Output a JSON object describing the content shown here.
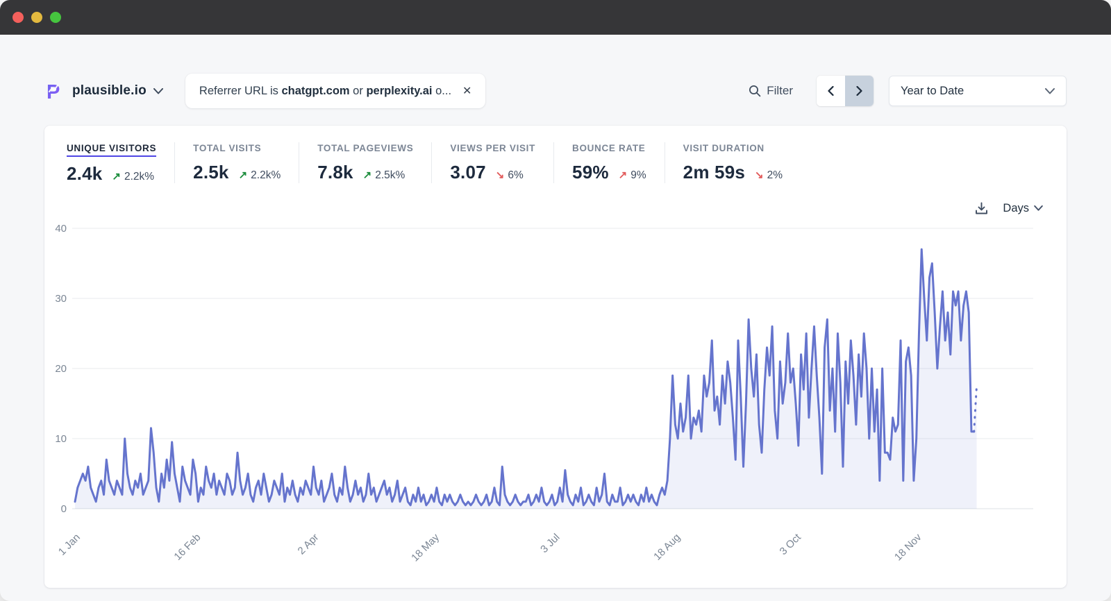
{
  "window": {
    "titlebar_color": "#363638"
  },
  "topbar": {
    "site": {
      "name": "plausible.io"
    },
    "filter_chip": {
      "prefix": "Referrer URL is ",
      "bold1": "chatgpt.com",
      "middle": " or ",
      "bold2": "perplexity.ai",
      "suffix": " o...",
      "close_glyph": "✕"
    },
    "filter_button_label": "Filter",
    "pager": {
      "prev_glyph": "‹",
      "next_glyph": "›"
    },
    "date_range_label": "Year to Date"
  },
  "stats": {
    "items": [
      {
        "label": "UNIQUE VISITORS",
        "value": "2.4k",
        "arrow": "↗",
        "change": "2.2k%",
        "arrow_color": "#1e8e3e",
        "selected": true
      },
      {
        "label": "TOTAL VISITS",
        "value": "2.5k",
        "arrow": "↗",
        "change": "2.2k%",
        "arrow_color": "#1e8e3e",
        "selected": false
      },
      {
        "label": "TOTAL PAGEVIEWS",
        "value": "7.8k",
        "arrow": "↗",
        "change": "2.5k%",
        "arrow_color": "#1e8e3e",
        "selected": false
      },
      {
        "label": "VIEWS PER VISIT",
        "value": "3.07",
        "arrow": "↘",
        "change": "6%",
        "arrow_color": "#e25c5c",
        "selected": false
      },
      {
        "label": "BOUNCE RATE",
        "value": "59%",
        "arrow": "↗",
        "change": "9%",
        "arrow_color": "#e25c5c",
        "selected": false
      },
      {
        "label": "VISIT DURATION",
        "value": "2m 59s",
        "arrow": "↘",
        "change": "2%",
        "arrow_color": "#e25c5c",
        "selected": false
      }
    ]
  },
  "chart_controls": {
    "interval_label": "Days"
  },
  "chart_data": {
    "type": "line",
    "title": "Unique visitors by day (Year to Date)",
    "ylim": [
      0,
      40
    ],
    "yticks": [
      0,
      10,
      20,
      30,
      40
    ],
    "x_domain_days": 365,
    "xticks": {
      "days": [
        0,
        46,
        91,
        137,
        183,
        229,
        275,
        321
      ],
      "labels": [
        "1 Jan",
        "16 Feb",
        "2 Apr",
        "18 May",
        "3 Jul",
        "18 Aug",
        "3 Oct",
        "18 Nov"
      ]
    },
    "line_color": "#6574cd",
    "fill_color": "rgba(101,116,205,0.10)",
    "grid_color": "#e9ebee",
    "axis_text_color": "#7b8694",
    "last_segment_dashed": true,
    "legend": "none",
    "values": [
      1,
      3,
      4,
      5,
      4,
      6,
      3,
      2,
      1,
      3,
      4,
      2,
      7,
      4,
      3,
      2,
      4,
      3,
      2,
      10,
      5,
      3,
      2,
      4,
      3,
      5,
      2,
      3,
      4,
      11.5,
      8,
      3,
      1,
      5,
      3,
      7,
      4,
      9.5,
      5,
      3,
      1,
      6,
      4,
      3,
      2,
      7,
      5,
      1,
      3,
      2,
      6,
      4,
      3,
      5,
      2,
      4,
      3,
      2,
      5,
      4,
      2,
      3,
      8,
      4,
      2,
      3,
      5,
      2,
      1,
      3,
      4,
      2,
      5,
      3,
      1,
      2,
      4,
      3,
      2,
      5,
      1,
      3,
      2,
      4,
      2,
      1,
      3,
      2,
      4,
      3,
      2,
      6,
      3,
      2,
      4,
      1,
      2,
      3,
      5,
      2,
      1,
      3,
      2,
      6,
      3,
      1,
      2,
      4,
      2,
      3,
      1,
      2,
      5,
      2,
      3,
      1,
      2,
      3,
      4,
      2,
      3,
      1,
      2,
      4,
      1,
      2,
      3,
      1,
      0.5,
      2,
      1,
      3,
      1,
      2,
      0.5,
      1,
      2,
      1,
      3,
      1,
      0.5,
      2,
      1,
      2,
      1,
      0.5,
      1,
      2,
      1,
      0.5,
      1,
      0.5,
      1,
      2,
      1,
      0.5,
      1,
      2,
      0.5,
      1,
      3,
      1,
      0.5,
      6,
      2,
      1,
      0.5,
      1,
      2,
      1,
      0.5,
      1,
      1,
      2,
      0.5,
      1,
      2,
      1,
      3,
      1,
      0.5,
      1,
      2,
      0.5,
      1,
      3,
      1,
      5.5,
      2,
      1,
      0.5,
      2,
      1,
      3,
      0.5,
      1,
      2,
      1,
      0.5,
      3,
      1,
      2,
      5,
      1,
      0.5,
      2,
      1,
      1,
      3,
      0.5,
      1,
      2,
      1,
      2,
      1,
      0.5,
      2,
      1,
      3,
      1,
      2,
      1,
      0.5,
      2,
      3,
      2,
      4,
      10,
      19,
      12,
      10,
      15,
      11,
      13,
      19,
      10,
      13,
      12,
      14,
      11,
      19,
      16,
      18,
      24,
      14,
      16,
      12,
      19,
      15,
      21,
      18,
      13,
      7,
      24,
      16,
      6,
      15,
      27,
      20,
      16,
      22,
      12,
      8,
      17,
      23,
      19,
      26,
      14,
      10,
      21,
      15,
      18,
      25,
      18,
      20,
      15,
      9,
      22,
      17,
      25,
      13,
      20,
      26,
      19,
      13,
      5,
      23,
      27,
      14,
      20,
      11,
      25,
      18,
      6,
      21,
      15,
      24,
      19,
      12,
      22,
      16,
      25,
      20,
      10,
      20,
      11,
      17,
      4,
      20,
      8,
      8,
      7,
      13,
      11,
      12,
      24,
      4,
      21,
      23,
      19,
      4,
      10,
      25,
      37,
      30,
      24,
      33,
      35,
      28,
      20,
      26,
      31,
      24,
      28,
      22,
      31,
      29,
      31,
      24,
      29,
      31,
      28,
      11,
      11,
      17.5
    ]
  }
}
